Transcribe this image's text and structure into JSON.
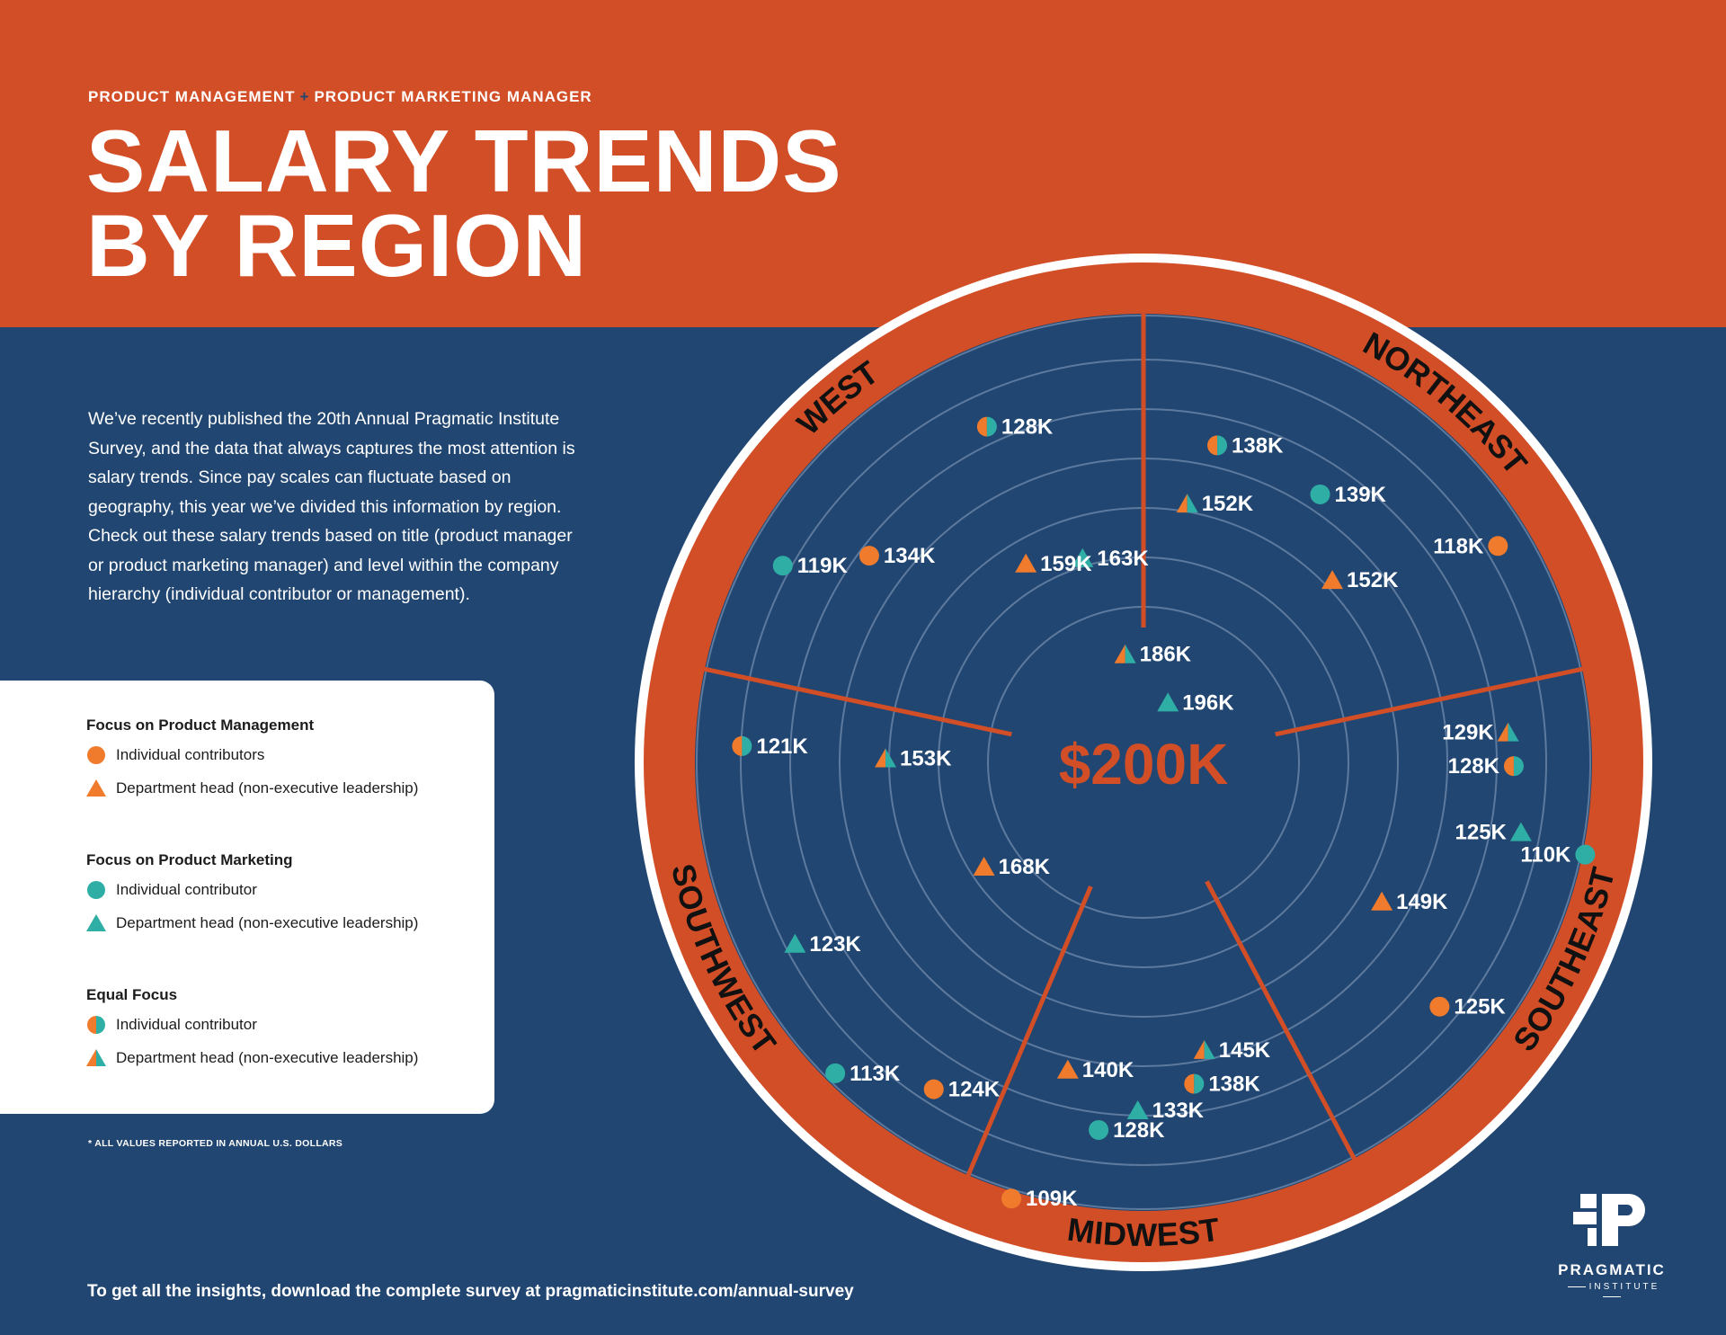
{
  "header": {
    "kicker_left": "PRODUCT MANAGEMENT",
    "kicker_sep": "+",
    "kicker_right": "PRODUCT MARKETING MANAGER",
    "title_line1": "SALARY TRENDS",
    "title_line2": "BY REGION"
  },
  "intro": "We’ve recently published the 20th Annual Pragmatic Institute Survey, and the data that always captures the most attention is salary trends. Since pay scales can fluctuate based on geography, this year we’ve divided this information by region. Check out these salary trends based on title (product manager or product marketing manager) and level within the company hierarchy (individual contributor or management).",
  "legend": {
    "groups": [
      {
        "heading": "Focus on Product Management",
        "items": [
          {
            "shape": "circle",
            "label": "Individual contributors"
          },
          {
            "shape": "triangle",
            "label": "Department head (non-executive leadership)"
          }
        ]
      },
      {
        "heading": "Focus on Product Marketing",
        "items": [
          {
            "shape": "circle",
            "label": "Individual contributor"
          },
          {
            "shape": "triangle",
            "label": "Department head (non-executive leadership)"
          }
        ]
      },
      {
        "heading": "Equal Focus",
        "items": [
          {
            "shape": "circle",
            "label": "Individual contributor"
          },
          {
            "shape": "triangle",
            "label": "Department head (non-executive leadership)"
          }
        ]
      }
    ]
  },
  "note": "* ALL VALUES REPORTED IN ANNUAL U.S. DOLLARS",
  "footer": "To get all the insights, download the complete survey at pragmaticinstitute.com/annual-survey",
  "brand": {
    "name": "PRAGMATIC",
    "sub": "INSTITUTE"
  },
  "colors": {
    "orange": "#d24e27",
    "navy": "#214671",
    "marker_orange": "#f07b2c",
    "marker_teal": "#2faea6",
    "white": "#ffffff"
  },
  "chart_data": {
    "type": "scatter",
    "center_label": "$200K",
    "regions": [
      "WEST",
      "NORTHEAST",
      "SOUTHEAST",
      "MIDWEST",
      "SOUTHWEST"
    ],
    "series": [
      {
        "name": "Focus on Product Management — Individual contributors",
        "focus": "management",
        "shape": "circle"
      },
      {
        "name": "Focus on Product Management — Department head (non-executive leadership)",
        "focus": "management",
        "shape": "triangle"
      },
      {
        "name": "Focus on Product Marketing — Individual contributor",
        "focus": "marketing",
        "shape": "circle"
      },
      {
        "name": "Focus on Product Marketing — Department head (non-executive leadership)",
        "focus": "marketing",
        "shape": "triangle"
      },
      {
        "name": "Equal Focus — Individual contributor",
        "focus": "equal",
        "shape": "circle"
      },
      {
        "name": "Equal Focus — Department head (non-executive leadership)",
        "focus": "equal",
        "shape": "triangle"
      }
    ],
    "points": [
      {
        "region": "WEST",
        "value": 128,
        "label": "128K",
        "focus": "equal",
        "shape": "circle"
      },
      {
        "region": "WEST",
        "value": 119,
        "label": "119K",
        "focus": "marketing",
        "shape": "circle"
      },
      {
        "region": "WEST",
        "value": 134,
        "label": "134K",
        "focus": "management",
        "shape": "circle"
      },
      {
        "region": "WEST",
        "value": 163,
        "label": "163K",
        "focus": "marketing",
        "shape": "triangle"
      },
      {
        "region": "WEST",
        "value": 159,
        "label": "159K",
        "focus": "management",
        "shape": "triangle"
      },
      {
        "region": "WEST",
        "value": 186,
        "label": "186K",
        "focus": "equal",
        "shape": "triangle"
      },
      {
        "region": "NORTHEAST",
        "value": 138,
        "label": "138K",
        "focus": "equal",
        "shape": "circle"
      },
      {
        "region": "NORTHEAST",
        "value": 152,
        "label": "152K",
        "focus": "equal",
        "shape": "triangle"
      },
      {
        "region": "NORTHEAST",
        "value": 139,
        "label": "139K",
        "focus": "marketing",
        "shape": "circle"
      },
      {
        "region": "NORTHEAST",
        "value": 118,
        "label": "118K",
        "focus": "management",
        "shape": "circle"
      },
      {
        "region": "NORTHEAST",
        "value": 152,
        "label": "152K",
        "focus": "management",
        "shape": "triangle"
      },
      {
        "region": "NORTHEAST",
        "value": 196,
        "label": "196K",
        "focus": "marketing",
        "shape": "triangle"
      },
      {
        "region": "SOUTHEAST",
        "value": 129,
        "label": "129K",
        "focus": "equal",
        "shape": "triangle"
      },
      {
        "region": "SOUTHEAST",
        "value": 128,
        "label": "128K",
        "focus": "equal",
        "shape": "circle"
      },
      {
        "region": "SOUTHEAST",
        "value": 125,
        "label": "125K",
        "focus": "marketing",
        "shape": "triangle"
      },
      {
        "region": "SOUTHEAST",
        "value": 110,
        "label": "110K",
        "focus": "marketing",
        "shape": "circle"
      },
      {
        "region": "SOUTHEAST",
        "value": 149,
        "label": "149K",
        "focus": "management",
        "shape": "triangle"
      },
      {
        "region": "SOUTHEAST",
        "value": 125,
        "label": "125K",
        "focus": "management",
        "shape": "circle"
      },
      {
        "region": "MIDWEST",
        "value": 140,
        "label": "140K",
        "focus": "management",
        "shape": "triangle"
      },
      {
        "region": "MIDWEST",
        "value": 145,
        "label": "145K",
        "focus": "equal",
        "shape": "triangle"
      },
      {
        "region": "MIDWEST",
        "value": 133,
        "label": "133K",
        "focus": "marketing",
        "shape": "triangle"
      },
      {
        "region": "MIDWEST",
        "value": 138,
        "label": "138K",
        "focus": "equal",
        "shape": "circle"
      },
      {
        "region": "MIDWEST",
        "value": 128,
        "label": "128K",
        "focus": "marketing",
        "shape": "circle"
      },
      {
        "region": "MIDWEST",
        "value": 109,
        "label": "109K",
        "focus": "management",
        "shape": "circle"
      },
      {
        "region": "SOUTHWEST",
        "value": 153,
        "label": "153K",
        "focus": "equal",
        "shape": "triangle"
      },
      {
        "region": "SOUTHWEST",
        "value": 121,
        "label": "121K",
        "focus": "equal",
        "shape": "circle"
      },
      {
        "region": "SOUTHWEST",
        "value": 168,
        "label": "168K",
        "focus": "management",
        "shape": "triangle"
      },
      {
        "region": "SOUTHWEST",
        "value": 123,
        "label": "123K",
        "focus": "marketing",
        "shape": "triangle"
      },
      {
        "region": "SOUTHWEST",
        "value": 113,
        "label": "113K",
        "focus": "marketing",
        "shape": "circle"
      },
      {
        "region": "SOUTHWEST",
        "value": 124,
        "label": "124K",
        "focus": "management",
        "shape": "circle"
      }
    ]
  }
}
